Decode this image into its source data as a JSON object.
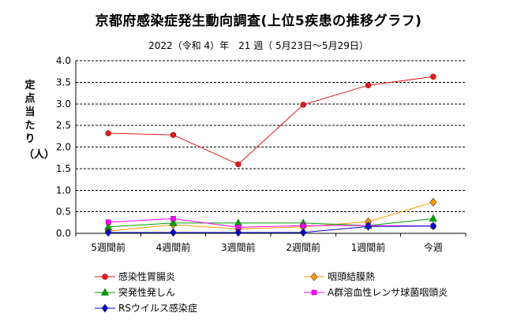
{
  "chart_data": {
    "type": "line",
    "title": "京都府感染症発生動向調査(上位5疾患の推移グラフ)",
    "subtitle": "2022（令和 4）年　21 週（ 5月23日〜5月29日）",
    "ylabel_chars": [
      "定",
      "点",
      "当",
      "た",
      "り"
    ],
    "ylabel_unit": "（人）",
    "categories": [
      "5週間前",
      "4週間前",
      "3週間前",
      "2週間前",
      "1週間前",
      "今週"
    ],
    "ylim": [
      0,
      4.0
    ],
    "yticks": [
      "0.0",
      "0.5",
      "1.0",
      "1.5",
      "2.0",
      "2.5",
      "3.0",
      "3.5",
      "4.0"
    ],
    "grid": true,
    "legend_position": "bottom",
    "series": [
      {
        "name": "感染性胃腸炎",
        "color": "#e41a1c",
        "marker": "circle",
        "values": [
          2.32,
          2.28,
          1.6,
          2.98,
          3.43,
          3.63
        ]
      },
      {
        "name": "咽頭結膜熱",
        "color": "#ff9900",
        "marker": "diamond",
        "values": [
          0.05,
          0.2,
          0.1,
          0.15,
          0.27,
          0.72
        ]
      },
      {
        "name": "突発性発しん",
        "color": "#00a000",
        "marker": "triangle",
        "values": [
          0.15,
          0.24,
          0.24,
          0.24,
          0.18,
          0.34
        ]
      },
      {
        "name": "A群溶血性レンサ球菌咽頭炎",
        "color": "#ff00ff",
        "marker": "square",
        "values": [
          0.26,
          0.34,
          0.14,
          0.18,
          0.18,
          0.17
        ]
      },
      {
        "name": "RSウイルス感染症",
        "color": "#0000cc",
        "marker": "diamond",
        "values": [
          0.02,
          0.02,
          0.02,
          0.02,
          0.16,
          0.17
        ]
      }
    ]
  }
}
